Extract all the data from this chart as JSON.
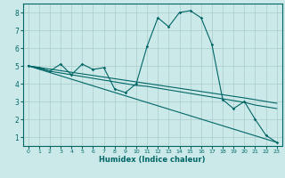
{
  "title": "",
  "xlabel": "Humidex (Indice chaleur)",
  "background_color": "#cce9e9",
  "grid_color": "#aacccc",
  "line_color": "#006666",
  "xlim": [
    -0.5,
    23.5
  ],
  "ylim": [
    0.5,
    8.5
  ],
  "xticks": [
    0,
    1,
    2,
    3,
    4,
    5,
    6,
    7,
    8,
    9,
    10,
    11,
    12,
    13,
    14,
    15,
    16,
    17,
    18,
    19,
    20,
    21,
    22,
    23
  ],
  "yticks": [
    1,
    2,
    3,
    4,
    5,
    6,
    7,
    8
  ],
  "series1": [
    [
      0,
      5.0
    ],
    [
      1,
      4.9
    ],
    [
      2,
      4.7
    ],
    [
      3,
      5.1
    ],
    [
      4,
      4.5
    ],
    [
      5,
      5.1
    ],
    [
      6,
      4.8
    ],
    [
      7,
      4.9
    ],
    [
      8,
      3.7
    ],
    [
      9,
      3.5
    ],
    [
      10,
      4.0
    ],
    [
      11,
      6.1
    ],
    [
      12,
      7.7
    ],
    [
      13,
      7.2
    ],
    [
      14,
      8.0
    ],
    [
      15,
      8.1
    ],
    [
      16,
      7.7
    ],
    [
      17,
      6.2
    ],
    [
      18,
      3.1
    ],
    [
      19,
      2.6
    ],
    [
      20,
      3.0
    ],
    [
      21,
      2.0
    ],
    [
      22,
      1.1
    ],
    [
      23,
      0.7
    ]
  ],
  "series2": [
    [
      0,
      5.0
    ],
    [
      1,
      4.85
    ],
    [
      2,
      4.7
    ],
    [
      3,
      4.6
    ],
    [
      4,
      4.5
    ],
    [
      5,
      4.4
    ],
    [
      6,
      4.3
    ],
    [
      7,
      4.2
    ],
    [
      8,
      4.1
    ],
    [
      9,
      4.0
    ],
    [
      10,
      3.9
    ],
    [
      11,
      3.85
    ],
    [
      12,
      3.75
    ],
    [
      13,
      3.65
    ],
    [
      14,
      3.55
    ],
    [
      15,
      3.45
    ],
    [
      16,
      3.35
    ],
    [
      17,
      3.25
    ],
    [
      18,
      3.15
    ],
    [
      19,
      3.05
    ],
    [
      20,
      2.95
    ],
    [
      21,
      2.8
    ],
    [
      22,
      2.7
    ],
    [
      23,
      2.6
    ]
  ],
  "series3": [
    [
      0,
      5.0
    ],
    [
      5,
      4.55
    ],
    [
      10,
      4.1
    ],
    [
      15,
      3.65
    ],
    [
      20,
      3.2
    ],
    [
      23,
      2.9
    ]
  ],
  "series4": [
    [
      0,
      5.0
    ],
    [
      23,
      0.7
    ]
  ]
}
